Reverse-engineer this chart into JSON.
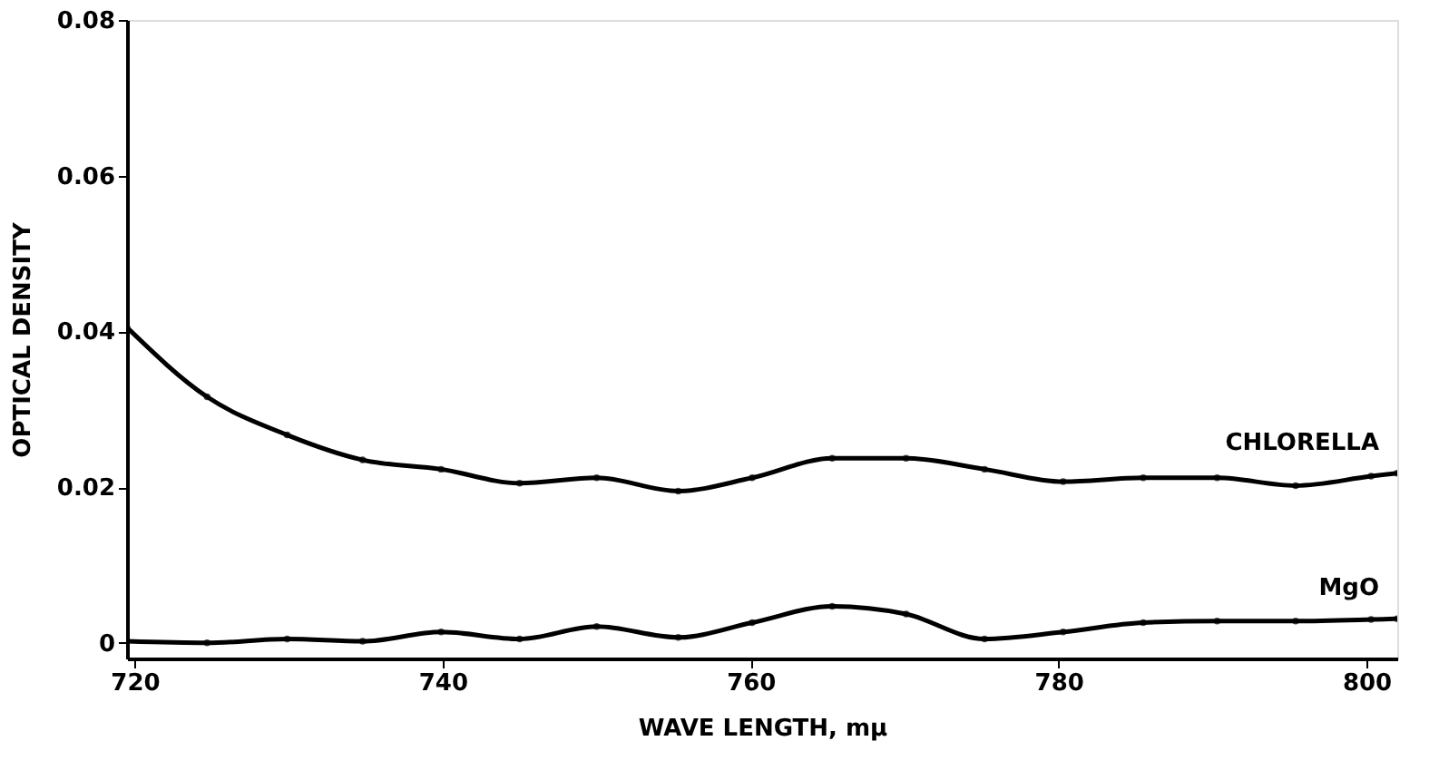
{
  "chart_data": {
    "type": "line",
    "xlabel": "WAVE LENGTH, mμ",
    "ylabel": "OPTICAL DENSITY",
    "xlim": [
      719.5,
      802
    ],
    "xticks": [
      720,
      740,
      760,
      780,
      800
    ],
    "ylim": [
      -0.002,
      0.08
    ],
    "yticks": [
      0,
      0.02,
      0.04,
      0.06,
      0.08
    ],
    "grid": false,
    "legend": false,
    "marker": "circle",
    "line_style": "solid",
    "series": [
      {
        "name": "CHLORELLA",
        "color": "#000000",
        "x": [
          719.5,
          724.7,
          729.9,
          734.8,
          739.9,
          745,
          750,
          755.3,
          760.1,
          765.3,
          770.1,
          775.2,
          780.3,
          785.5,
          790.3,
          795.4,
          800.3,
          802
        ],
        "values": [
          0.0405,
          0.0316,
          0.0267,
          0.0235,
          0.0223,
          0.0205,
          0.0212,
          0.0195,
          0.0212,
          0.0237,
          0.0237,
          0.0223,
          0.0207,
          0.0212,
          0.0212,
          0.0202,
          0.0214,
          0.0218
        ]
      },
      {
        "name": "MgO",
        "color": "#000000",
        "x": [
          719.5,
          724.7,
          729.9,
          734.8,
          739.9,
          745,
          750,
          755.3,
          760.1,
          765.3,
          770.1,
          775.2,
          780.3,
          785.5,
          790.3,
          795.4,
          800.3,
          802
        ],
        "values": [
          0.0002,
          0.0,
          0.0005,
          0.0002,
          0.0014,
          0.0005,
          0.0021,
          0.0007,
          0.0026,
          0.0047,
          0.0037,
          0.0005,
          0.0014,
          0.0026,
          0.0028,
          0.0028,
          0.003,
          0.0031
        ]
      }
    ]
  }
}
